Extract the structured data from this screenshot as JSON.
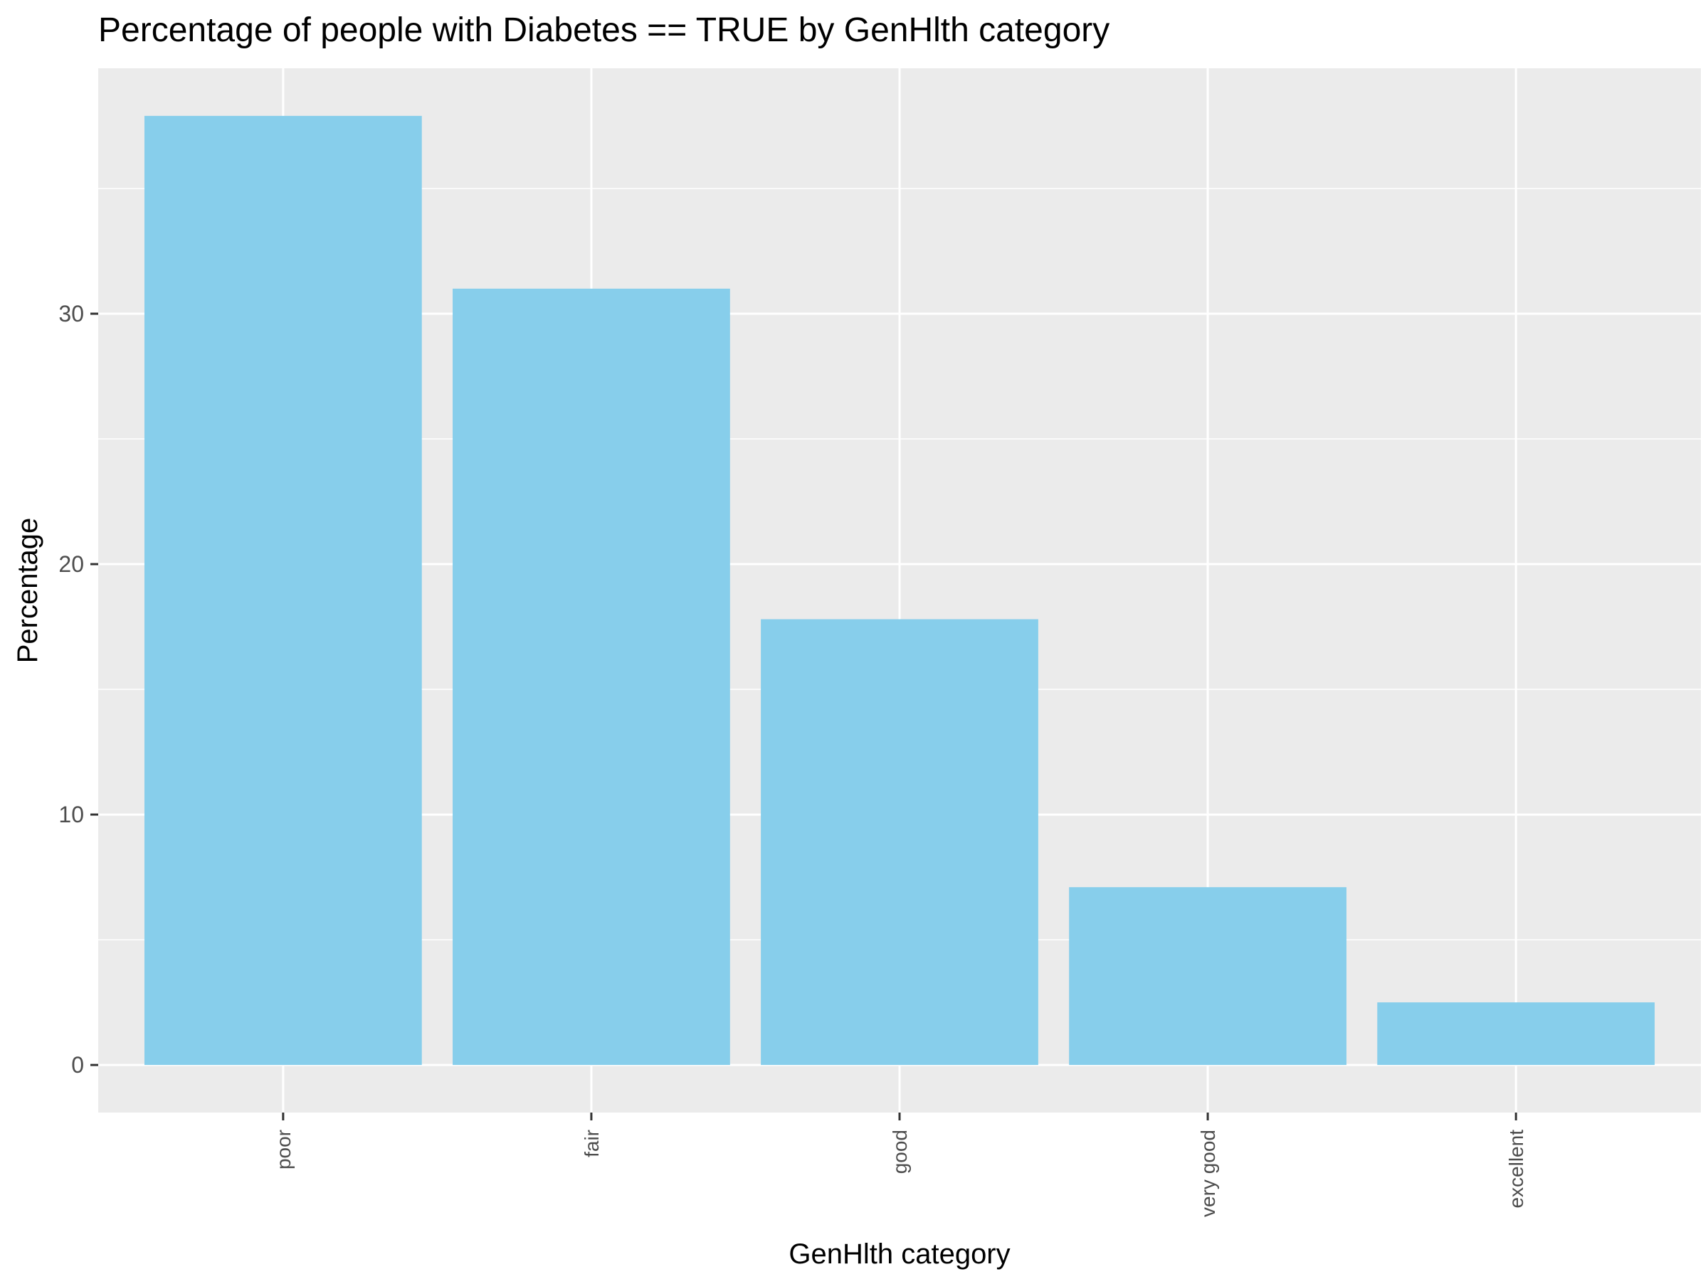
{
  "chart_data": {
    "type": "bar",
    "title": "Percentage of people with Diabetes == TRUE by GenHlth category",
    "xlabel": "GenHlth category",
    "ylabel": "Percentage",
    "categories": [
      "poor",
      "fair",
      "good",
      "very good",
      "excellent"
    ],
    "values": [
      37.9,
      31.0,
      17.8,
      7.1,
      2.5
    ],
    "ylim": [
      -1.9,
      39.8
    ],
    "yticks": [
      0,
      10,
      20,
      30
    ],
    "ytick_labels": [
      "0",
      "10",
      "20",
      "30"
    ],
    "grid": true,
    "legend": "none",
    "colors": {
      "bar": "#87CEEB",
      "panel_background": "#EBEBEB",
      "grid": "#FFFFFF",
      "tick_label": "#4D4D4D",
      "axis_title": "#000000",
      "title": "#000000"
    }
  }
}
